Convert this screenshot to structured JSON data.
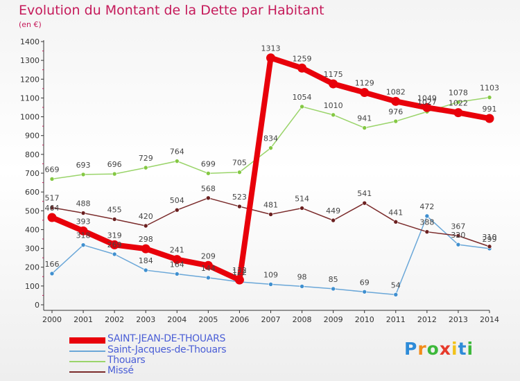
{
  "header": {
    "title": "Evolution du Montant de la Dette par Habitant",
    "unit": "(en €)"
  },
  "logo": {
    "text": "Proxiti",
    "letters": [
      "P",
      "r",
      "o",
      "x",
      "i",
      "t",
      "i"
    ],
    "colors": [
      "#2e8bd8",
      "#f28c1a",
      "#3db83b",
      "#e63a2a",
      "#f2c21a",
      "#2e8bd8",
      "#3db83b"
    ]
  },
  "chart_data": {
    "type": "line",
    "title": "Evolution du Montant de la Dette par Habitant",
    "ylabel": "(en €)",
    "xlabel": "",
    "x": [
      "2000",
      "2001",
      "2002",
      "2003",
      "2004",
      "2005",
      "2006",
      "2007",
      "2008",
      "2009",
      "2010",
      "2011",
      "2012",
      "2013",
      "2014"
    ],
    "ylim": [
      0,
      1400
    ],
    "yticks": [
      0,
      100,
      200,
      300,
      400,
      500,
      600,
      700,
      800,
      900,
      1000,
      1100,
      1200,
      1300,
      1400
    ],
    "grid": false,
    "legend_position": "bottom-left",
    "series": [
      {
        "name": "SAINT-JEAN-DE-THOUARS",
        "color": "#e8000a",
        "marker": "#e8000a",
        "emphasis": true,
        "values": [
          464,
          393,
          319,
          298,
          241,
          209,
          132,
          1313,
          1259,
          1175,
          1129,
          1082,
          1049,
          1022,
          991
        ],
        "labels": [
          "464",
          "393",
          "319",
          "298",
          "241",
          "209",
          "132",
          "1313",
          "1259",
          "1175",
          "1129",
          "1082",
          "1049",
          "1022",
          "991"
        ]
      },
      {
        "name": "Saint-Jacques-de-Thouars",
        "color": "#6aa7d8",
        "marker": "#3f8fcf",
        "emphasis": false,
        "values": [
          166,
          318,
          269,
          184,
          164,
          144,
          122,
          109,
          98,
          85,
          69,
          54,
          472,
          320,
          299
        ],
        "labels": [
          "166",
          "318",
          "269",
          "184",
          "164",
          "144",
          "122",
          "109",
          "98",
          "85",
          "69",
          "54",
          "472",
          "320",
          "299"
        ]
      },
      {
        "name": "Thouars",
        "color": "#9ad46a",
        "marker": "#84c843",
        "emphasis": false,
        "values": [
          669,
          693,
          696,
          729,
          764,
          699,
          705,
          834,
          1054,
          1010,
          941,
          976,
          1027,
          1078,
          1103
        ],
        "labels": [
          "669",
          "693",
          "696",
          "729",
          "764",
          "699",
          "705",
          "834",
          "1054",
          "1010",
          "941",
          "976",
          "1027",
          "1078",
          "1103"
        ]
      },
      {
        "name": "Missé",
        "color": "#7a2a2a",
        "marker": "#6b2020",
        "emphasis": false,
        "values": [
          517,
          488,
          455,
          420,
          504,
          568,
          523,
          481,
          514,
          449,
          541,
          441,
          388,
          367,
          310
        ],
        "labels": [
          "517",
          "488",
          "455",
          "420",
          "504",
          "568",
          "523",
          "481",
          "514",
          "449",
          "541",
          "441",
          "388",
          "367",
          "310"
        ]
      }
    ]
  }
}
